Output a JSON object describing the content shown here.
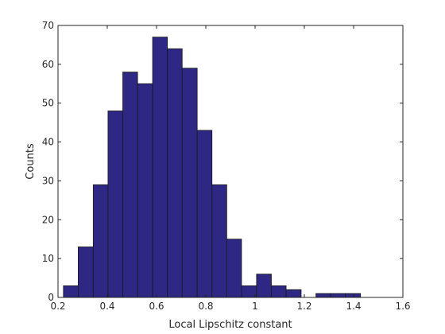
{
  "chart_data": {
    "type": "bar",
    "subtype": "histogram",
    "title": "",
    "xlabel": "Local Lipschitz constant",
    "ylabel": "Counts",
    "xlim": [
      0.2,
      1.6
    ],
    "ylim": [
      0,
      70
    ],
    "xticks": [
      "0.2",
      "0.4",
      "0.6",
      "0.8",
      "1",
      "1.2",
      "1.4",
      "1.6"
    ],
    "yticks": [
      "0",
      "10",
      "20",
      "30",
      "40",
      "50",
      "60",
      "70"
    ],
    "xtick_values": [
      0.2,
      0.4,
      0.6,
      0.8,
      1.0,
      1.2,
      1.4,
      1.6
    ],
    "ytick_values": [
      0,
      10,
      20,
      30,
      40,
      50,
      60,
      70
    ],
    "grid": false,
    "bar_color": "#2e2783",
    "edge_color": "#1a1a1a",
    "bins": [
      {
        "x0": 0.222,
        "x1": 0.282,
        "count": 3
      },
      {
        "x0": 0.282,
        "x1": 0.343,
        "count": 13
      },
      {
        "x0": 0.343,
        "x1": 0.403,
        "count": 29
      },
      {
        "x0": 0.403,
        "x1": 0.463,
        "count": 48
      },
      {
        "x0": 0.463,
        "x1": 0.523,
        "count": 58
      },
      {
        "x0": 0.523,
        "x1": 0.584,
        "count": 55
      },
      {
        "x0": 0.584,
        "x1": 0.644,
        "count": 67
      },
      {
        "x0": 0.644,
        "x1": 0.704,
        "count": 64
      },
      {
        "x0": 0.704,
        "x1": 0.765,
        "count": 59
      },
      {
        "x0": 0.765,
        "x1": 0.825,
        "count": 43
      },
      {
        "x0": 0.825,
        "x1": 0.885,
        "count": 29
      },
      {
        "x0": 0.885,
        "x1": 0.945,
        "count": 15
      },
      {
        "x0": 0.945,
        "x1": 1.006,
        "count": 3
      },
      {
        "x0": 1.006,
        "x1": 1.066,
        "count": 6
      },
      {
        "x0": 1.066,
        "x1": 1.126,
        "count": 3
      },
      {
        "x0": 1.126,
        "x1": 1.187,
        "count": 2
      },
      {
        "x0": 1.187,
        "x1": 1.247,
        "count": 0
      },
      {
        "x0": 1.247,
        "x1": 1.307,
        "count": 1
      },
      {
        "x0": 1.307,
        "x1": 1.367,
        "count": 1
      },
      {
        "x0": 1.367,
        "x1": 1.428,
        "count": 1
      }
    ]
  }
}
